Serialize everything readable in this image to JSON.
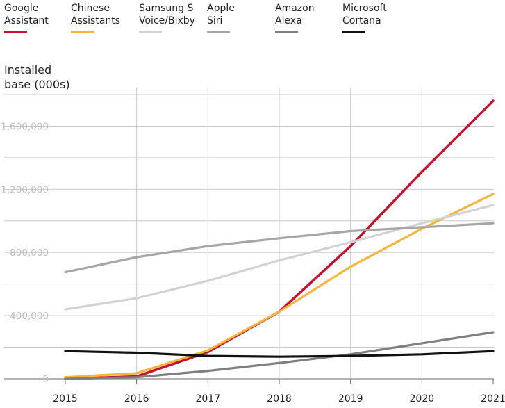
{
  "chart_data": {
    "type": "line",
    "ylabel": "Installed\nbase (000s)",
    "x": [
      "2015",
      "2016",
      "2017",
      "2018",
      "2019",
      "2020",
      "2021"
    ],
    "ylim": [
      0,
      1800000
    ],
    "yticks": [
      0,
      400000,
      800000,
      1200000,
      1600000
    ],
    "ytick_labels": [
      "0",
      "400,000",
      "800,000",
      "1,200,000",
      "1,600,000"
    ],
    "grid": true,
    "legend_position": "top",
    "series": [
      {
        "name": "Google\nAssistant",
        "color": "#c8102e",
        "values": [
          0,
          15000,
          170000,
          425000,
          840000,
          1310000,
          1760000
        ]
      },
      {
        "name": "Chinese\nAssistants",
        "color": "#f7b538",
        "values": [
          10000,
          35000,
          180000,
          425000,
          710000,
          950000,
          1170000
        ]
      },
      {
        "name": "Samsung S\nVoice/Bixby",
        "color": "#d2d2d2",
        "values": [
          440000,
          510000,
          620000,
          750000,
          865000,
          985000,
          1100000
        ]
      },
      {
        "name": "Apple\nSiri",
        "color": "#a6a6a6",
        "values": [
          675000,
          770000,
          840000,
          890000,
          935000,
          960000,
          985000
        ]
      },
      {
        "name": "Amazon\nAlexa",
        "color": "#7f7f7f",
        "values": [
          0,
          10000,
          50000,
          100000,
          155000,
          225000,
          295000
        ]
      },
      {
        "name": "Microsoft\nCortana",
        "color": "#111111",
        "values": [
          175000,
          165000,
          145000,
          140000,
          145000,
          155000,
          175000
        ]
      }
    ]
  }
}
